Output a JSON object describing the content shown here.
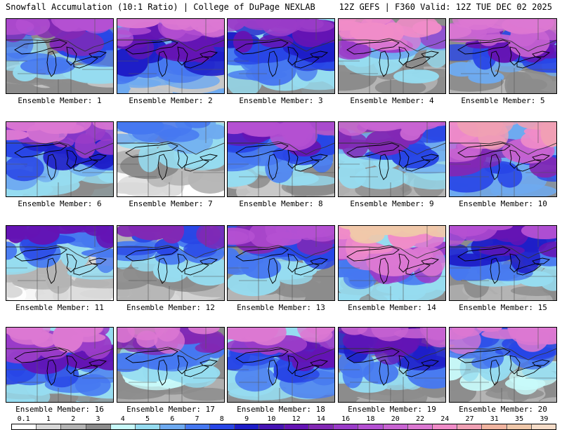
{
  "header": {
    "left": "Snowfall Accumulation (10:1 Ratio) | College of DuPage NEXLAB",
    "right": "12Z GEFS | F360 Valid: 12Z TUE DEC 02 2025"
  },
  "colorbar": {
    "labels": [
      "0.1",
      "1",
      "2",
      "3",
      "4",
      "5",
      "6",
      "7",
      "8",
      "9",
      "10",
      "12",
      "14",
      "16",
      "18",
      "20",
      "22",
      "24",
      "27",
      "31",
      "35",
      "39"
    ],
    "colors": [
      "#ffffff",
      "#d8d8d8",
      "#b4b4b4",
      "#8c8c8c",
      "#c8fafa",
      "#96dcf0",
      "#6eaaf0",
      "#4678f0",
      "#2846e6",
      "#1e1ec8",
      "#4614b4",
      "#6414b4",
      "#8228b4",
      "#9a3cc8",
      "#b450d2",
      "#c864d2",
      "#dc78d2",
      "#f08cc8",
      "#f0a0b4",
      "#f0b4a0",
      "#f0c8aa",
      "#f5dcc8"
    ]
  },
  "map": {
    "colors": {
      "land_bg": "#ffffff",
      "lake_outline": "#000000",
      "border_line": "#333333",
      "state_line": "#555555"
    }
  },
  "panels": [
    {
      "label": "Ensemble Member: 1",
      "palette": [
        "#c8c8c8",
        "#8c8c8c",
        "#96dcf0",
        "#4678f0",
        "#2846e6",
        "#8228b4",
        "#b450d2"
      ]
    },
    {
      "label": "Ensemble Member: 2",
      "palette": [
        "#c8c8c8",
        "#6eaaf0",
        "#4678f0",
        "#1e1ec8",
        "#6414b4",
        "#b450d2",
        "#dc78d2"
      ]
    },
    {
      "label": "Ensemble Member: 3",
      "palette": [
        "#8c8c8c",
        "#96dcf0",
        "#4678f0",
        "#2846e6",
        "#1e1ec8",
        "#6414b4",
        "#9a3cc8"
      ]
    },
    {
      "label": "Ensemble Member: 4",
      "palette": [
        "#b4b4b4",
        "#8c8c8c",
        "#96dcf0",
        "#6eaaf0",
        "#9a3cc8",
        "#dc78d2",
        "#f08cc8"
      ]
    },
    {
      "label": "Ensemble Member: 5",
      "palette": [
        "#b4b4b4",
        "#8c8c8c",
        "#6eaaf0",
        "#2846e6",
        "#6414b4",
        "#c864d2",
        "#dc78d2"
      ]
    },
    {
      "label": "Ensemble Member: 6",
      "palette": [
        "#8c8c8c",
        "#96dcf0",
        "#6eaaf0",
        "#2846e6",
        "#1e1ec8",
        "#9a3cc8",
        "#dc78d2"
      ]
    },
    {
      "label": "Ensemble Member: 7",
      "palette": [
        "#ffffff",
        "#d8d8d8",
        "#b4b4b4",
        "#8c8c8c",
        "#96dcf0",
        "#6eaaf0",
        "#4678f0"
      ]
    },
    {
      "label": "Ensemble Member: 8",
      "palette": [
        "#c8c8c8",
        "#8c8c8c",
        "#96dcf0",
        "#4678f0",
        "#2846e6",
        "#6414b4",
        "#b450d2"
      ]
    },
    {
      "label": "Ensemble Member: 9",
      "palette": [
        "#b4b4b4",
        "#8c8c8c",
        "#96dcf0",
        "#6eaaf0",
        "#2846e6",
        "#8228b4",
        "#c864d2"
      ]
    },
    {
      "label": "Ensemble Member: 10",
      "palette": [
        "#8c8c8c",
        "#6eaaf0",
        "#2846e6",
        "#8228b4",
        "#c864d2",
        "#f08cc8",
        "#f0a0b4"
      ]
    },
    {
      "label": "Ensemble Member: 11",
      "palette": [
        "#ffffff",
        "#d8d8d8",
        "#b4b4b4",
        "#96dcf0",
        "#4678f0",
        "#2846e6",
        "#6414b4"
      ]
    },
    {
      "label": "Ensemble Member: 12",
      "palette": [
        "#d8d8d8",
        "#b4b4b4",
        "#8c8c8c",
        "#96dcf0",
        "#4678f0",
        "#2846e6",
        "#8228b4"
      ]
    },
    {
      "label": "Ensemble Member: 13",
      "palette": [
        "#b4b4b4",
        "#8c8c8c",
        "#96dcf0",
        "#4678f0",
        "#2846e6",
        "#8228b4",
        "#b450d2"
      ]
    },
    {
      "label": "Ensemble Member: 14",
      "palette": [
        "#8c8c8c",
        "#96dcf0",
        "#4678f0",
        "#9a3cc8",
        "#dc78d2",
        "#f08cc8",
        "#f0c8aa"
      ]
    },
    {
      "label": "Ensemble Member: 15",
      "palette": [
        "#b4b4b4",
        "#8c8c8c",
        "#96dcf0",
        "#4678f0",
        "#1e1ec8",
        "#6414b4",
        "#b450d2"
      ]
    },
    {
      "label": "Ensemble Member: 16",
      "palette": [
        "#8c8c8c",
        "#96dcf0",
        "#4678f0",
        "#2846e6",
        "#6414b4",
        "#9a3cc8",
        "#dc78d2"
      ]
    },
    {
      "label": "Ensemble Member: 17",
      "palette": [
        "#b4b4b4",
        "#8c8c8c",
        "#c8fafa",
        "#96dcf0",
        "#4678f0",
        "#8228b4",
        "#dc78d2"
      ]
    },
    {
      "label": "Ensemble Member: 18",
      "palette": [
        "#8c8c8c",
        "#96dcf0",
        "#4678f0",
        "#2846e6",
        "#6414b4",
        "#9a3cc8",
        "#dc78d2"
      ]
    },
    {
      "label": "Ensemble Member: 19",
      "palette": [
        "#b4b4b4",
        "#8c8c8c",
        "#96dcf0",
        "#4678f0",
        "#1e1ec8",
        "#6414b4",
        "#c864d2"
      ]
    },
    {
      "label": "Ensemble Member: 20",
      "palette": [
        "#b4b4b4",
        "#8c8c8c",
        "#c8fafa",
        "#96dcf0",
        "#4678f0",
        "#2846e6",
        "#dc78d2"
      ]
    }
  ]
}
